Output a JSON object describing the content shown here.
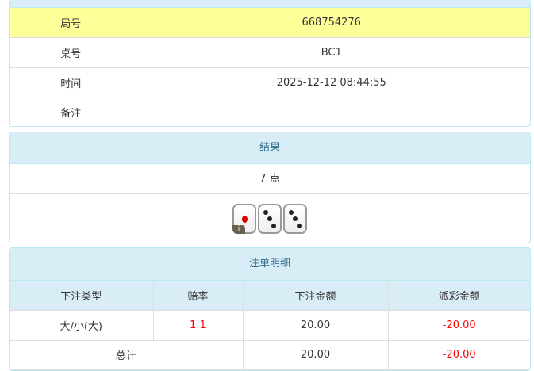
{
  "info": {
    "rows": [
      {
        "label": "局号",
        "value": "668754276"
      },
      {
        "label": "桌号",
        "value": "BC1"
      },
      {
        "label": "时间",
        "value": "2025-12-12 08:44:55"
      },
      {
        "label": "备注",
        "value": ""
      }
    ],
    "highlight": "#ffff99"
  },
  "result": {
    "title": "结果",
    "points": "7 点",
    "dice": [
      1,
      3,
      3
    ],
    "info_badge": "i"
  },
  "bets": {
    "title": "注单明细",
    "headers": [
      "下注类型",
      "赔率",
      "下注金额",
      "派彩金额"
    ],
    "rows": [
      {
        "type": "大/小(大)",
        "odds": "1:1",
        "amount": "20.00",
        "payout": "-20.00"
      }
    ],
    "total": {
      "label": "总计",
      "amount": "20.00",
      "payout": "-20.00"
    }
  },
  "colors": {
    "header_bg": "#d9edf7",
    "header_text": "#31708f",
    "negative": "#ff0000"
  }
}
